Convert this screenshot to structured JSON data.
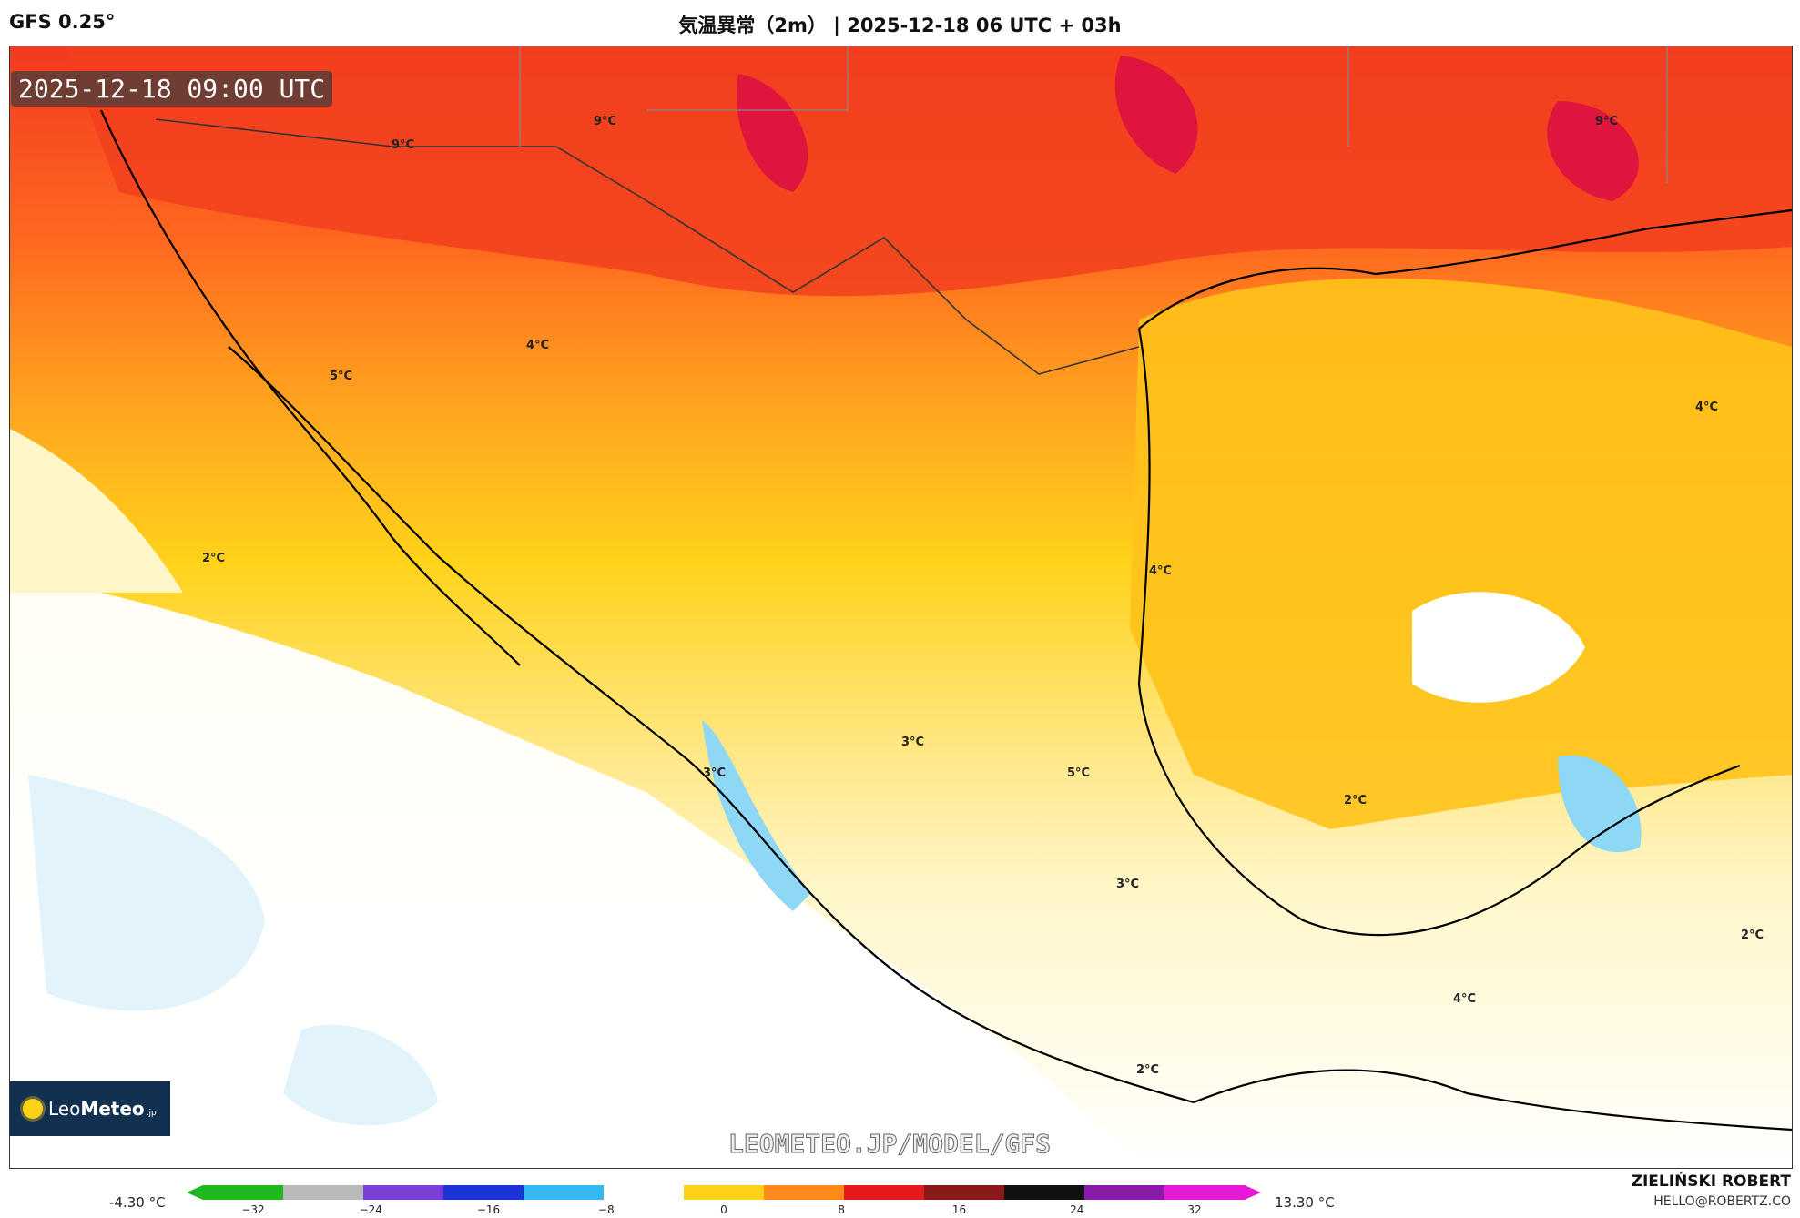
{
  "header": {
    "model": "GFS 0.25°",
    "title": "気温異常（2m） | 2025-12-18 06 UTC + 03h"
  },
  "map": {
    "valid_time": "2025-12-18 09:00 UTC",
    "watermark": "LEOMETEO.JP/MODEL/GFS",
    "logo": {
      "brand_light": "Leo",
      "brand_bold": "Meteo",
      "suffix": ".jp"
    },
    "contour_labels": [
      {
        "text": "9°C"
      },
      {
        "text": "9°C"
      },
      {
        "text": "9°C"
      },
      {
        "text": "5°C"
      },
      {
        "text": "4°C"
      },
      {
        "text": "4°C"
      },
      {
        "text": "4°C"
      },
      {
        "text": "2°C"
      },
      {
        "text": "3°C"
      },
      {
        "text": "3°C"
      },
      {
        "text": "5°C"
      },
      {
        "text": "2°C"
      },
      {
        "text": "3°C"
      },
      {
        "text": "2°C"
      },
      {
        "text": "4°C"
      },
      {
        "text": "2°C"
      }
    ]
  },
  "colorbar": {
    "min_label": "-4.30 °C",
    "max_label": "13.30 °C",
    "ticks": [
      "−32",
      "−24",
      "−16",
      "−8",
      "0",
      "8",
      "16",
      "24",
      "32"
    ],
    "colors": [
      "#1fb81f",
      "#b9b9b9",
      "#7b3fd8",
      "#1933d6",
      "#33b8f0",
      "#ffffff",
      "#ffd21a",
      "#ff8a1a",
      "#e61a1a",
      "#8a1a1a",
      "#111111",
      "#8a1aa8",
      "#e61ad6"
    ]
  },
  "credits": {
    "author": "ZIELIŃSKI ROBERT",
    "email": "HELLO@ROBERTZ.CO"
  }
}
